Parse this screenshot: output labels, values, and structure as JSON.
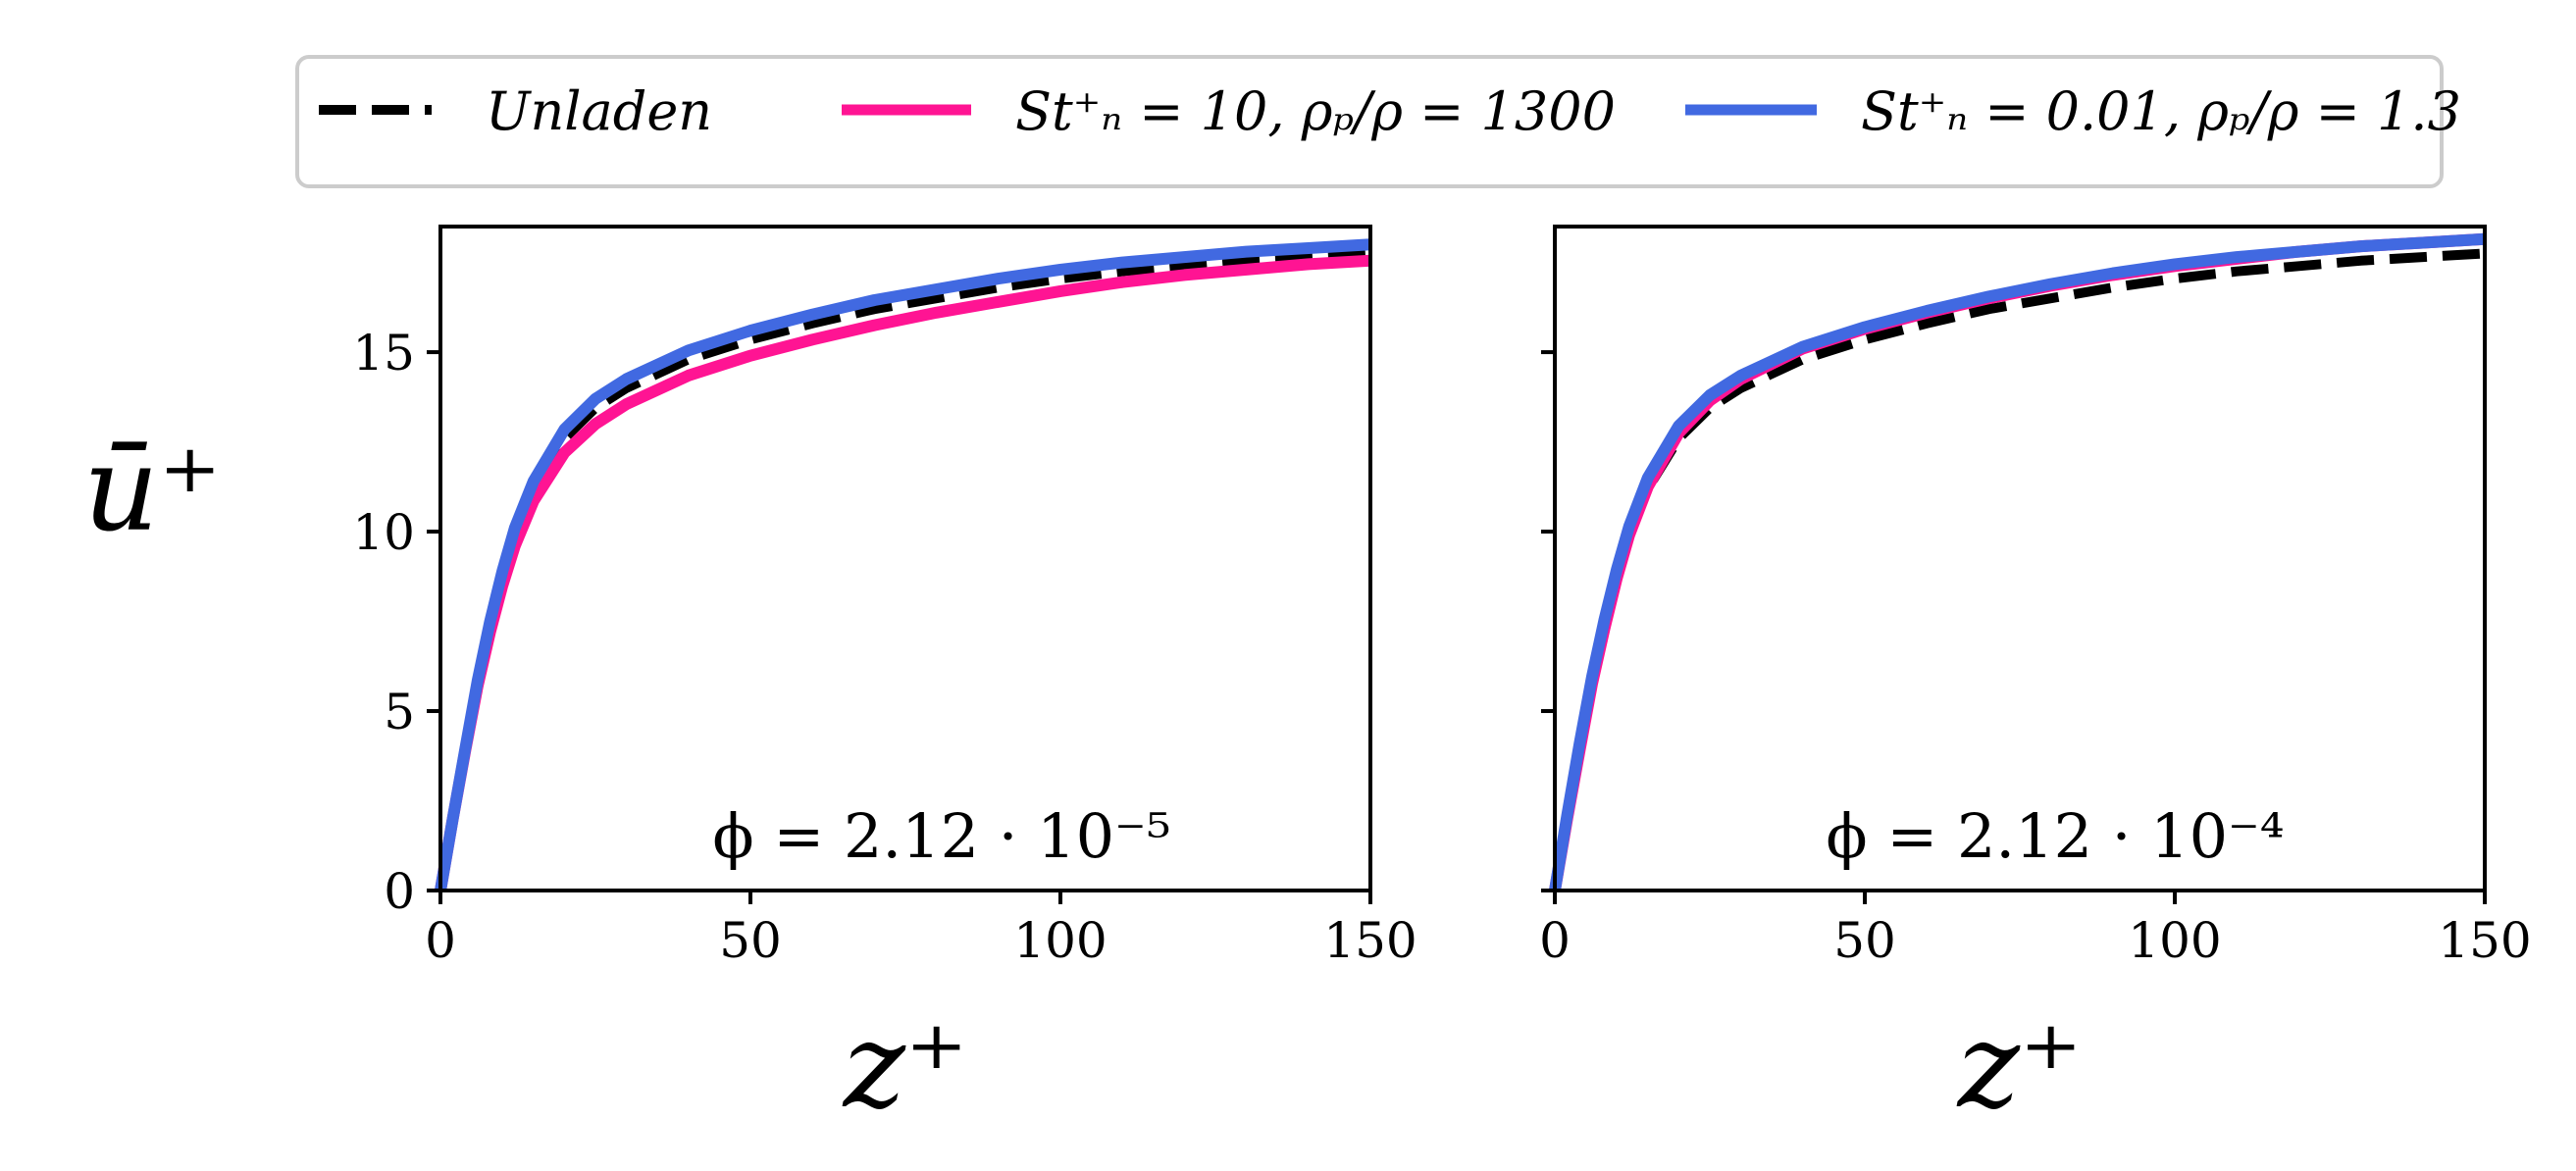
{
  "chart_data": [
    {
      "type": "line",
      "annotation": "ϕ = 2.12 · 10⁻⁵",
      "xlabel": "z⁺",
      "ylabel": "ū⁺",
      "xlim": [
        0,
        150
      ],
      "ylim": [
        0,
        18.5
      ],
      "xticks": [
        "0",
        "50",
        "100",
        "150"
      ],
      "yticks": [
        "0",
        "5",
        "10",
        "15"
      ],
      "grid": false,
      "series": [
        {
          "name": "Unladen",
          "color": "#000000",
          "style": "dashed",
          "x": [
            0,
            2,
            4,
            6,
            8,
            10,
            12,
            15,
            20,
            25,
            30,
            40,
            50,
            60,
            70,
            80,
            90,
            100,
            110,
            120,
            130,
            140,
            150
          ],
          "y": [
            0,
            2.0,
            3.95,
            5.8,
            7.4,
            8.8,
            9.95,
            11.2,
            12.6,
            13.45,
            14.0,
            14.8,
            15.35,
            15.8,
            16.2,
            16.5,
            16.8,
            17.05,
            17.25,
            17.4,
            17.55,
            17.65,
            17.75
          ]
        },
        {
          "name": "St⁺ₙ = 10, ρₚ/ρ = 1300",
          "color": "#ff1493",
          "style": "solid",
          "x": [
            0,
            2,
            4,
            6,
            8,
            10,
            12,
            15,
            20,
            25,
            30,
            40,
            50,
            60,
            70,
            80,
            90,
            100,
            110,
            120,
            130,
            140,
            150
          ],
          "y": [
            0,
            2.0,
            3.9,
            5.7,
            7.2,
            8.5,
            9.6,
            10.85,
            12.2,
            13.0,
            13.55,
            14.35,
            14.9,
            15.35,
            15.75,
            16.1,
            16.4,
            16.7,
            16.95,
            17.15,
            17.3,
            17.45,
            17.55
          ]
        },
        {
          "name": "St⁺ₙ = 0.01, ρₚ/ρ = 1.3",
          "color": "#4169e1",
          "style": "solid",
          "x": [
            0,
            2,
            4,
            6,
            8,
            10,
            12,
            15,
            20,
            25,
            30,
            40,
            50,
            60,
            70,
            80,
            90,
            100,
            110,
            120,
            130,
            140,
            150
          ],
          "y": [
            0,
            2.0,
            3.95,
            5.85,
            7.5,
            8.9,
            10.1,
            11.4,
            12.85,
            13.7,
            14.25,
            15.05,
            15.6,
            16.05,
            16.45,
            16.75,
            17.05,
            17.3,
            17.5,
            17.65,
            17.8,
            17.9,
            18.0
          ]
        }
      ]
    },
    {
      "type": "line",
      "annotation": "ϕ = 2.12 · 10⁻⁴",
      "xlabel": "z⁺",
      "ylabel": "",
      "xlim": [
        0,
        150
      ],
      "ylim": [
        0,
        18.5
      ],
      "xticks": [
        "0",
        "50",
        "100",
        "150"
      ],
      "yticks": [],
      "grid": false,
      "series": [
        {
          "name": "Unladen",
          "color": "#000000",
          "style": "dashed",
          "x": [
            0,
            2,
            4,
            6,
            8,
            10,
            12,
            15,
            20,
            25,
            30,
            40,
            50,
            60,
            70,
            80,
            90,
            100,
            110,
            120,
            130,
            140,
            150
          ],
          "y": [
            0,
            2.0,
            3.95,
            5.8,
            7.4,
            8.8,
            9.95,
            11.2,
            12.6,
            13.45,
            14.0,
            14.8,
            15.35,
            15.8,
            16.2,
            16.5,
            16.8,
            17.05,
            17.25,
            17.4,
            17.55,
            17.65,
            17.75
          ]
        },
        {
          "name": "St⁺ₙ = 10, ρₚ/ρ = 1300",
          "color": "#ff1493",
          "style": "solid",
          "x": [
            0,
            2,
            4,
            6,
            8,
            10,
            12,
            15,
            20,
            25,
            30,
            40,
            50,
            60,
            70,
            80,
            90,
            100,
            110,
            120,
            130,
            140,
            150
          ],
          "y": [
            0,
            2.0,
            3.9,
            5.75,
            7.3,
            8.7,
            9.9,
            11.25,
            12.75,
            13.65,
            14.25,
            15.1,
            15.65,
            16.1,
            16.5,
            16.85,
            17.15,
            17.4,
            17.6,
            17.8,
            17.95,
            18.05,
            18.15
          ]
        },
        {
          "name": "St⁺ₙ = 0.01, ρₚ/ρ = 1.3",
          "color": "#4169e1",
          "style": "solid",
          "x": [
            0,
            2,
            4,
            6,
            8,
            10,
            12,
            15,
            20,
            25,
            30,
            40,
            50,
            60,
            70,
            80,
            90,
            100,
            110,
            120,
            130,
            140,
            150
          ],
          "y": [
            0,
            2.1,
            4.1,
            5.95,
            7.55,
            8.95,
            10.15,
            11.5,
            12.95,
            13.8,
            14.35,
            15.15,
            15.7,
            16.15,
            16.55,
            16.9,
            17.2,
            17.45,
            17.65,
            17.8,
            17.95,
            18.05,
            18.15
          ]
        }
      ]
    }
  ],
  "legend": {
    "placement": "top",
    "entries": [
      {
        "label": "Unladen",
        "color": "#000000",
        "style": "dashed"
      },
      {
        "label": "St⁺ₙ = 10, ρₚ/ρ = 1300",
        "color": "#ff1493",
        "style": "solid"
      },
      {
        "label": "St⁺ₙ = 0.01, ρₚ/ρ = 1.3",
        "color": "#4169e1",
        "style": "solid"
      }
    ]
  }
}
